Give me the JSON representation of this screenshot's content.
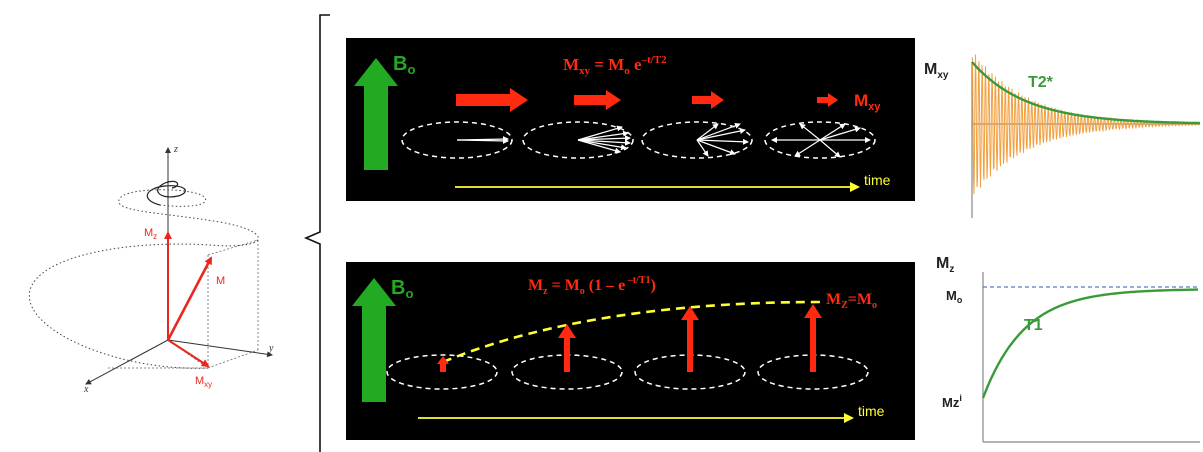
{
  "left_diagram": {
    "axes": {
      "x": "x",
      "y": "y",
      "z": "z"
    },
    "labels": {
      "mz": "M",
      "mz_sub": "z",
      "m": "M",
      "mxy": "M",
      "mxy_sub": "xy"
    }
  },
  "top_panel": {
    "field_label": "B",
    "field_sub": "o",
    "eq": {
      "lhs": "M",
      "lhs_sub": "xy",
      "eqsign": " =  M",
      "m_sub": "o",
      "exp_base": " e",
      "exp_sup": "–t/T2"
    },
    "mxy_label": "M",
    "mxy_sub": "xy",
    "time_label": "time"
  },
  "bottom_panel": {
    "field_label": "B",
    "field_sub": "o",
    "eq": {
      "lhs": "M",
      "lhs_sub": "z",
      "eq1": " = M",
      "m_sub": "o",
      "paren": " (1 – e",
      "exp_sup": " –t/T1",
      "close": ")"
    },
    "final": {
      "lhs": "M",
      "lhs_sub": "Z",
      "eq": "=M",
      "rhs_sub": "o"
    },
    "time_label": "time"
  },
  "t2_chart": {
    "ylabel": "M",
    "ylabel_sub": "xy",
    "curve_label": "T2*",
    "colors": {
      "envelope": "#3a9a3a",
      "fid": "#f0a040",
      "axis": "#888888"
    }
  },
  "t1_chart": {
    "ylabel": "M",
    "ylabel_sub": "z",
    "mo_label": "M",
    "mo_sub": "o",
    "curve_label": "T1",
    "mzi_label": "Mz",
    "mzi_sup": "i",
    "colors": {
      "curve": "#3a9a3a",
      "asymptote": "#5a7ac0",
      "axis": "#888888"
    }
  },
  "colors": {
    "red": "#ff2a10",
    "green": "#22aa22",
    "yellow": "#ffff33",
    "panel": "#000000"
  }
}
